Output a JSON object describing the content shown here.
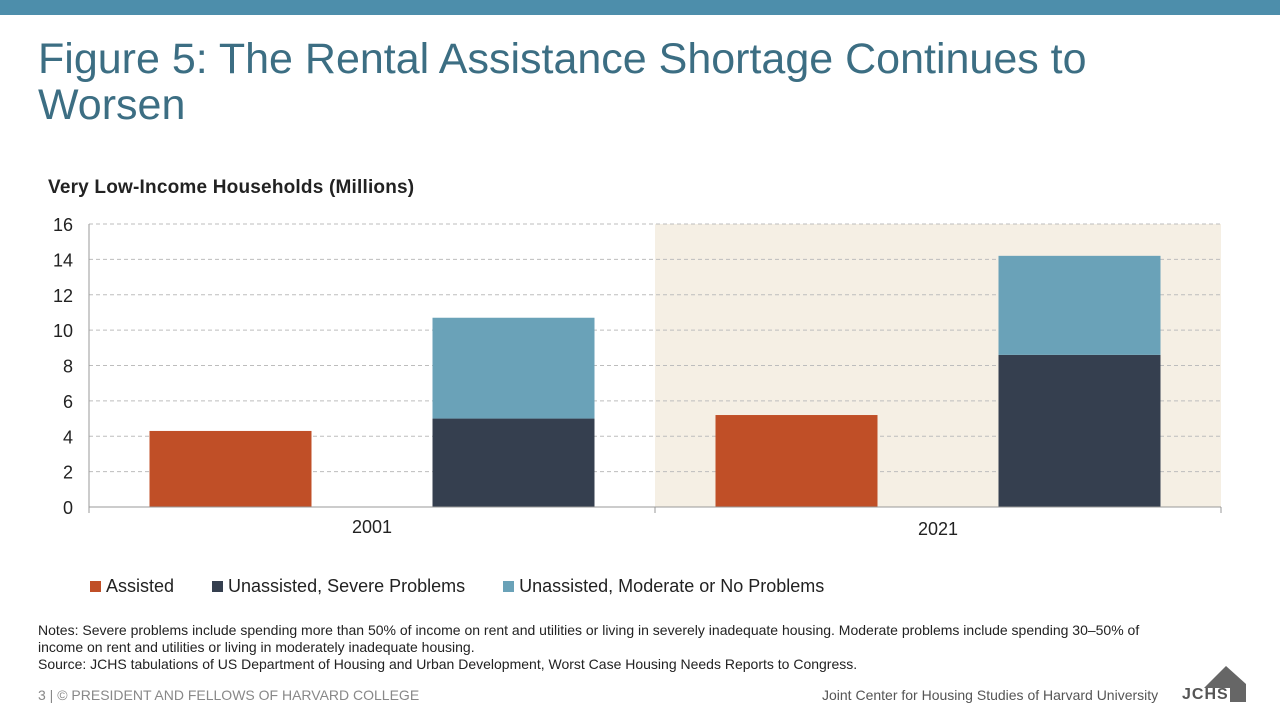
{
  "header": {
    "title": "Figure 5: The Rental Assistance Shortage Continues to Worsen"
  },
  "chart_data": {
    "type": "bar",
    "title": "Very Low-Income Households (Millions)",
    "categories": [
      "2001",
      "2021"
    ],
    "ylim": [
      0,
      16
    ],
    "yticks": [
      "0",
      "2",
      "4",
      "6",
      "8",
      "10",
      "12",
      "14",
      "16"
    ],
    "grid": true,
    "stacked_groups": [
      "Assisted",
      "Unassisted"
    ],
    "series": [
      {
        "name": "Assisted",
        "values": [
          4.3,
          5.2
        ],
        "color": "#c04f27"
      },
      {
        "name": "Unassisted, Severe Problems",
        "values": [
          5.0,
          8.6
        ],
        "color": "#353f4f"
      },
      {
        "name": "Unassisted, Moderate or No Problems",
        "values": [
          5.7,
          5.6
        ],
        "color": "#6aa2b8"
      }
    ],
    "highlight_category": "2021",
    "highlight_color": "#f5efe4",
    "legend_position": "bottom"
  },
  "legend": {
    "items": [
      {
        "label": "Assisted",
        "color": "#c04f27"
      },
      {
        "label": "Unassisted, Severe Problems",
        "color": "#353f4f"
      },
      {
        "label": "Unassisted, Moderate or No Problems",
        "color": "#6aa2b8"
      }
    ]
  },
  "notes": {
    "line1": "Notes: Severe problems include spending more than 50% of income on rent and utilities or living in severely inadequate housing. Moderate problems include spending 30–50% of income on rent and utilities or living in moderately inadequate housing.",
    "line2": "Source: JCHS tabulations of US Department of Housing and Urban Development, Worst Case Housing Needs Reports to Congress."
  },
  "footer": {
    "left": "3 | © PRESIDENT AND FELLOWS OF HARVARD COLLEGE",
    "right": "Joint Center for Housing Studies of Harvard University",
    "logo_text": "JCHS",
    "logo_icon": "house-icon"
  }
}
